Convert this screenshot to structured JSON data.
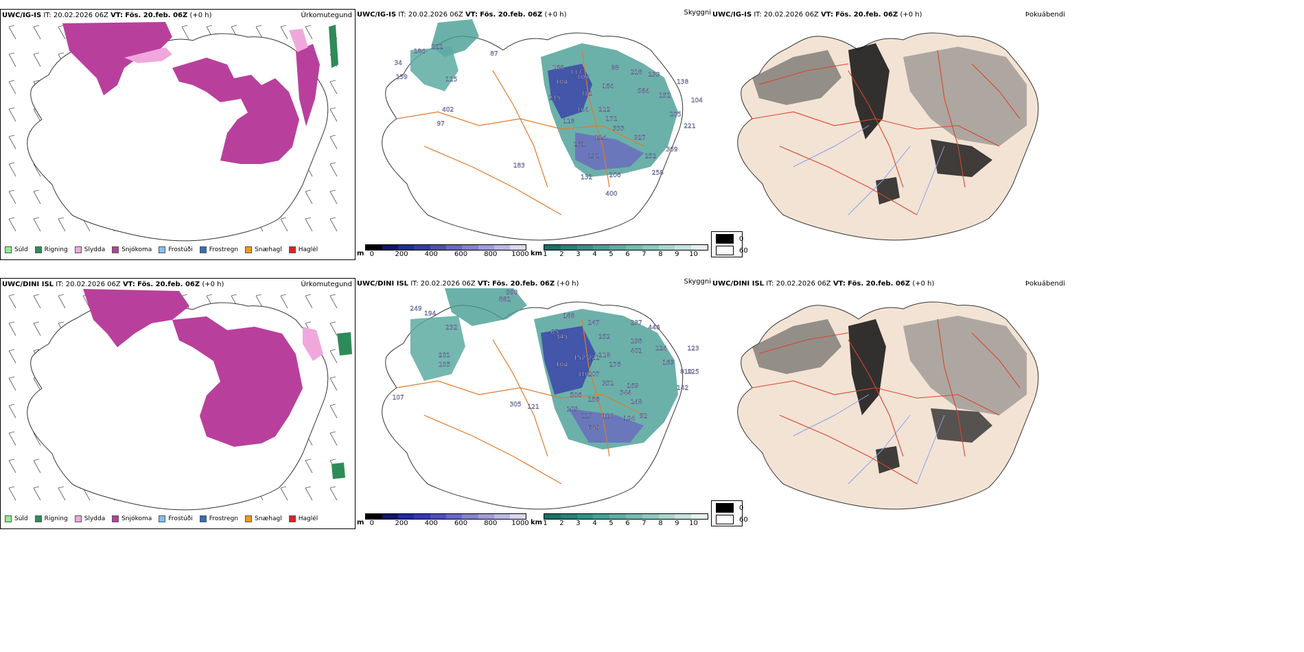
{
  "rows": [
    {
      "model": "UWC/IG-IS",
      "it_label": "IT:",
      "it_value": "20.02.2026 06Z",
      "vt_label": "VT:",
      "vt_value": "Fös. 20.feb. 06Z",
      "lead": "(+0 h)",
      "labels": [
        {
          "text": "184",
          "xp": 0.18,
          "yp": 0.19
        },
        {
          "text": "222",
          "xp": 0.23,
          "yp": 0.17
        },
        {
          "text": "87",
          "xp": 0.39,
          "yp": 0.2
        },
        {
          "text": "34",
          "xp": 0.12,
          "yp": 0.24
        },
        {
          "text": "139",
          "xp": 0.13,
          "yp": 0.3
        },
        {
          "text": "115",
          "xp": 0.27,
          "yp": 0.31
        },
        {
          "text": "402",
          "xp": 0.26,
          "yp": 0.44
        },
        {
          "text": "97",
          "xp": 0.24,
          "yp": 0.5
        },
        {
          "text": "166",
          "xp": 0.57,
          "yp": 0.26
        },
        {
          "text": "117",
          "xp": 0.62,
          "yp": 0.28
        },
        {
          "text": "104",
          "xp": 0.58,
          "yp": 0.32
        },
        {
          "text": "109",
          "xp": 0.64,
          "yp": 0.3
        },
        {
          "text": "88",
          "xp": 0.73,
          "yp": 0.26
        },
        {
          "text": "218",
          "xp": 0.79,
          "yp": 0.28
        },
        {
          "text": "133",
          "xp": 0.84,
          "yp": 0.29
        },
        {
          "text": "164",
          "xp": 0.71,
          "yp": 0.34
        },
        {
          "text": "138",
          "xp": 0.92,
          "yp": 0.32
        },
        {
          "text": "564",
          "xp": 0.81,
          "yp": 0.36
        },
        {
          "text": "215",
          "xp": 0.56,
          "yp": 0.39
        },
        {
          "text": "181",
          "xp": 0.65,
          "yp": 0.37
        },
        {
          "text": "152",
          "xp": 0.87,
          "yp": 0.38
        },
        {
          "text": "104",
          "xp": 0.96,
          "yp": 0.4
        },
        {
          "text": "104",
          "xp": 0.64,
          "yp": 0.44
        },
        {
          "text": "112",
          "xp": 0.7,
          "yp": 0.44
        },
        {
          "text": "171",
          "xp": 0.72,
          "yp": 0.48
        },
        {
          "text": "105",
          "xp": 0.9,
          "yp": 0.46
        },
        {
          "text": "118",
          "xp": 0.6,
          "yp": 0.49
        },
        {
          "text": "333",
          "xp": 0.74,
          "yp": 0.52
        },
        {
          "text": "221",
          "xp": 0.94,
          "yp": 0.51
        },
        {
          "text": "114",
          "xp": 0.69,
          "yp": 0.56
        },
        {
          "text": "327",
          "xp": 0.8,
          "yp": 0.56
        },
        {
          "text": "261",
          "xp": 0.63,
          "yp": 0.59
        },
        {
          "text": "131",
          "xp": 0.67,
          "yp": 0.64
        },
        {
          "text": "252",
          "xp": 0.83,
          "yp": 0.64
        },
        {
          "text": "369",
          "xp": 0.89,
          "yp": 0.61
        },
        {
          "text": "183",
          "xp": 0.46,
          "yp": 0.68
        },
        {
          "text": "206",
          "xp": 0.73,
          "yp": 0.72
        },
        {
          "text": "258",
          "xp": 0.85,
          "yp": 0.71
        },
        {
          "text": "132",
          "xp": 0.65,
          "yp": 0.73
        },
        {
          "text": "400",
          "xp": 0.72,
          "yp": 0.8
        }
      ]
    },
    {
      "model": "UWC/DINI ISL",
      "it_label": "IT:",
      "it_value": "20.02.2026 06Z",
      "vt_label": "VT:",
      "vt_value": "Fös. 20.feb. 06Z",
      "lead": "(+0 h)",
      "labels": [
        {
          "text": "990",
          "xp": 0.44,
          "yp": 0.07
        },
        {
          "text": "881",
          "xp": 0.42,
          "yp": 0.1
        },
        {
          "text": "249",
          "xp": 0.17,
          "yp": 0.14
        },
        {
          "text": "194",
          "xp": 0.21,
          "yp": 0.16
        },
        {
          "text": "232",
          "xp": 0.27,
          "yp": 0.22
        },
        {
          "text": "188",
          "xp": 0.6,
          "yp": 0.17
        },
        {
          "text": "147",
          "xp": 0.67,
          "yp": 0.2
        },
        {
          "text": "237",
          "xp": 0.79,
          "yp": 0.2
        },
        {
          "text": "446",
          "xp": 0.84,
          "yp": 0.22
        },
        {
          "text": "65",
          "xp": 0.56,
          "yp": 0.24
        },
        {
          "text": "345",
          "xp": 0.58,
          "yp": 0.26
        },
        {
          "text": "152",
          "xp": 0.7,
          "yp": 0.26
        },
        {
          "text": "198",
          "xp": 0.79,
          "yp": 0.28
        },
        {
          "text": "124",
          "xp": 0.86,
          "yp": 0.31
        },
        {
          "text": "123",
          "xp": 0.95,
          "yp": 0.31
        },
        {
          "text": "401",
          "xp": 0.79,
          "yp": 0.32
        },
        {
          "text": "201",
          "xp": 0.25,
          "yp": 0.34
        },
        {
          "text": "105",
          "xp": 0.25,
          "yp": 0.38
        },
        {
          "text": "152",
          "xp": 0.63,
          "yp": 0.35
        },
        {
          "text": "221",
          "xp": 0.67,
          "yp": 0.35
        },
        {
          "text": "118",
          "xp": 0.7,
          "yp": 0.34
        },
        {
          "text": "104",
          "xp": 0.58,
          "yp": 0.38
        },
        {
          "text": "276",
          "xp": 0.73,
          "yp": 0.38
        },
        {
          "text": "169",
          "xp": 0.88,
          "yp": 0.37
        },
        {
          "text": "810",
          "xp": 0.93,
          "yp": 0.41
        },
        {
          "text": "125",
          "xp": 0.95,
          "yp": 0.41
        },
        {
          "text": "310",
          "xp": 0.64,
          "yp": 0.42
        },
        {
          "text": "207",
          "xp": 0.67,
          "yp": 0.42
        },
        {
          "text": "351",
          "xp": 0.71,
          "yp": 0.46
        },
        {
          "text": "169",
          "xp": 0.78,
          "yp": 0.47
        },
        {
          "text": "344",
          "xp": 0.76,
          "yp": 0.5
        },
        {
          "text": "142",
          "xp": 0.92,
          "yp": 0.48
        },
        {
          "text": "506",
          "xp": 0.62,
          "yp": 0.51
        },
        {
          "text": "156",
          "xp": 0.67,
          "yp": 0.53
        },
        {
          "text": "148",
          "xp": 0.79,
          "yp": 0.54
        },
        {
          "text": "107",
          "xp": 0.12,
          "yp": 0.52
        },
        {
          "text": "305",
          "xp": 0.45,
          "yp": 0.55
        },
        {
          "text": "121",
          "xp": 0.5,
          "yp": 0.56
        },
        {
          "text": "103",
          "xp": 0.61,
          "yp": 0.57
        },
        {
          "text": "229",
          "xp": 0.65,
          "yp": 0.6
        },
        {
          "text": "110",
          "xp": 0.71,
          "yp": 0.6
        },
        {
          "text": "194",
          "xp": 0.77,
          "yp": 0.61
        },
        {
          "text": "92",
          "xp": 0.81,
          "yp": 0.6
        },
        {
          "text": "689",
          "xp": 0.67,
          "yp": 0.65
        }
      ]
    }
  ],
  "panel_titles": {
    "precip_type": "Úrkomutegund",
    "cloud": "Skyggni",
    "fog": "Þokuábendi"
  },
  "precip_legend": [
    {
      "label": "Súld",
      "color": "#90ee90"
    },
    {
      "label": "Rigning",
      "color": "#2e8b57"
    },
    {
      "label": "Slydda",
      "color": "#f0a8dc"
    },
    {
      "label": "Snjókoma",
      "color": "#b8409c"
    },
    {
      "label": "Frostúði",
      "color": "#87bfea"
    },
    {
      "label": "Frostregn",
      "color": "#2f6fbf"
    },
    {
      "label": "Snæhagl",
      "color": "#ee9a1a"
    },
    {
      "label": "Haglél",
      "color": "#e02020"
    }
  ],
  "ceiling_bar": {
    "unit": "m",
    "ticks": [
      "0",
      "200",
      "400",
      "600",
      "800",
      "1000"
    ],
    "colors": [
      "#000000",
      "#121468",
      "#1f2b9a",
      "#3538ab",
      "#4e4eb5",
      "#6a66c2",
      "#8380cd",
      "#9f9cd8",
      "#bab8e3",
      "#d8d7ef"
    ]
  },
  "visibility_bar": {
    "unit": "km",
    "ticks": [
      "1",
      "2",
      "3",
      "4",
      "5",
      "6",
      "7",
      "8",
      "9",
      "10"
    ],
    "colors": [
      "#1c6e66",
      "#267f77",
      "#348f86",
      "#479e94",
      "#5caca2",
      "#74b9b0",
      "#8dc6be",
      "#a8d4cd",
      "#c4e2dd",
      "#e2f1ee"
    ]
  },
  "fog_legend": [
    {
      "label": "0",
      "color": "#000000"
    },
    {
      "label": "60",
      "color": "#ffffff"
    }
  ],
  "colors": {
    "snow": "#b8409c",
    "sleet": "#f0a8dc",
    "rain": "#2e8b57",
    "ceiling": "#3538ab",
    "vis": "#479e94",
    "road": "#e07a2a",
    "road_red": "#d8452b",
    "land": "#f2e3d5",
    "river": "#8aa0e8"
  }
}
